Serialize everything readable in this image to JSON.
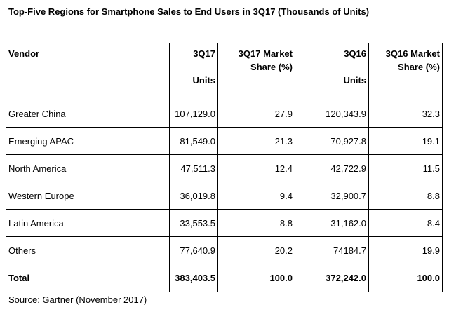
{
  "title": "Top-Five Regions for Smartphone Sales to End Users in 3Q17 (Thousands of Units)",
  "source": "Source: Gartner (November 2017)",
  "chart_data": {
    "type": "table",
    "title": "Top-Five Regions for Smartphone Sales to End Users in 3Q17 (Thousands of Units)",
    "columns": [
      {
        "lines": [
          "Vendor"
        ]
      },
      {
        "lines": [
          "3Q17",
          "Units"
        ]
      },
      {
        "lines": [
          "3Q17 Market",
          "Share (%)"
        ]
      },
      {
        "lines": [
          "3Q16",
          "Units"
        ]
      },
      {
        "lines": [
          "3Q16 Market",
          "Share (%)"
        ]
      }
    ],
    "rows": [
      [
        "Greater China",
        "107,129.0",
        "27.9",
        "120,343.9",
        "32.3"
      ],
      [
        "Emerging APAC",
        "81,549.0",
        "21.3",
        "70,927.8",
        "19.1"
      ],
      [
        "North America",
        "47,511.3",
        "12.4",
        "42,722.9",
        "11.5"
      ],
      [
        "Western Europe",
        "36,019.8",
        "9.4",
        "32,900.7",
        "8.8"
      ],
      [
        "Latin America",
        "33,553.5",
        "8.8",
        "31,162.0",
        "8.4"
      ],
      [
        "Others",
        "77,640.9",
        "20.2",
        "74184.7",
        "19.9"
      ]
    ],
    "total": [
      "Total",
      "383,403.5",
      "100.0",
      "372,242.0",
      "100.0"
    ]
  }
}
